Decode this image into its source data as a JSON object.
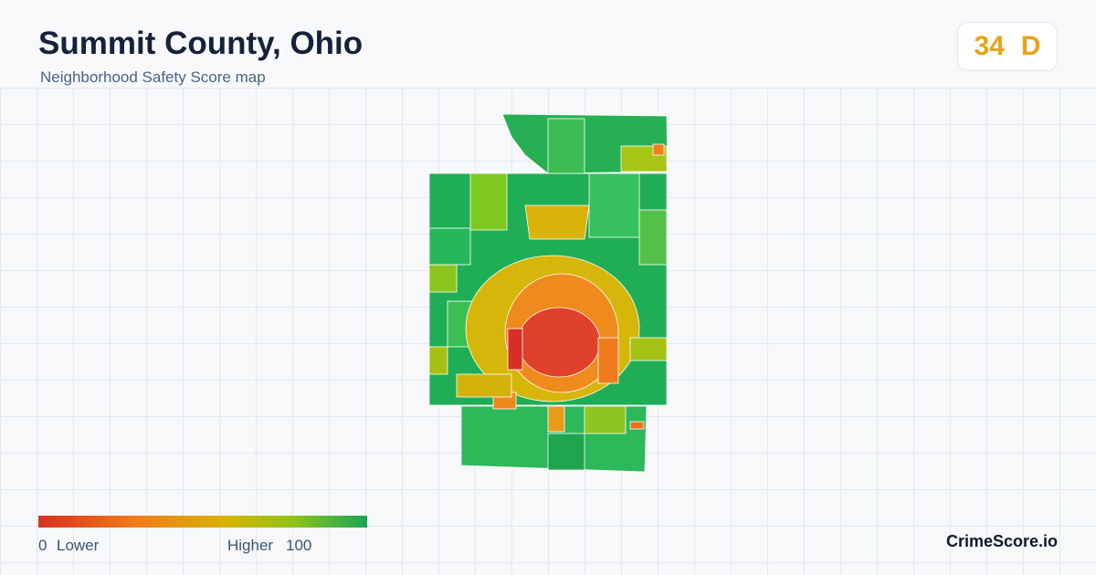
{
  "header": {
    "title": "Summit County, Ohio",
    "subtitle": "Neighborhood Safety Score map"
  },
  "score": {
    "value": 34,
    "grade": "D"
  },
  "legend": {
    "min": 0,
    "min_label": "Lower",
    "max_label": "Higher",
    "max": 100
  },
  "brand": "CrimeScore.io"
}
